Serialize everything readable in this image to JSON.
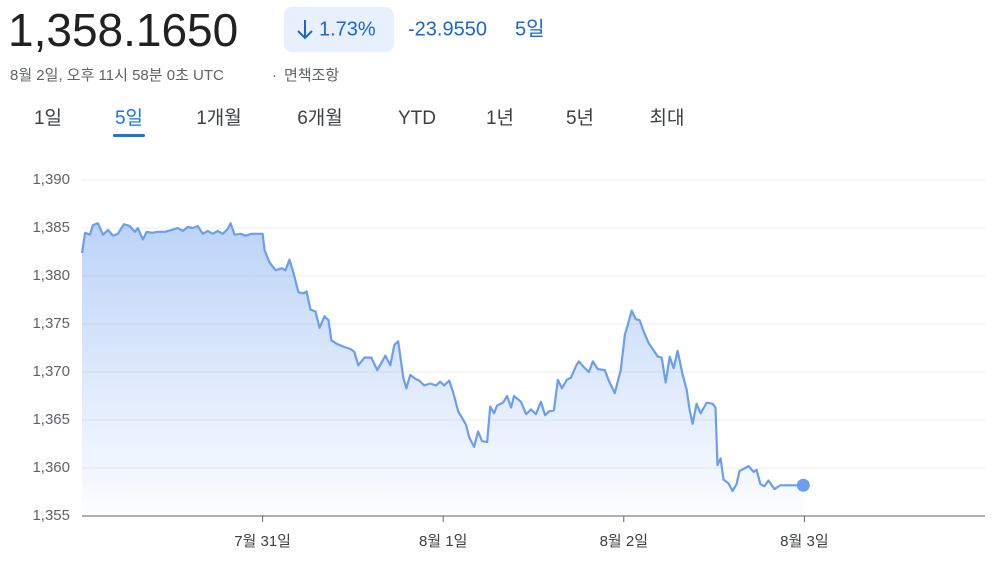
{
  "header": {
    "price": "1,358.1650",
    "change_percent": "1.73%",
    "change_value": "-23.9550",
    "change_period": "5일",
    "timestamp": "8월 2일, 오후 11시 58분 0초 UTC",
    "disclaimer": "면책조항"
  },
  "tabs": [
    "1일",
    "5일",
    "1개월",
    "6개월",
    "YTD",
    "1년",
    "5년",
    "최대"
  ],
  "selected_tab_index": 1,
  "chart_data": {
    "type": "line",
    "color": "#6b9ef0",
    "grid": true,
    "xlim": [
      0,
      5
    ],
    "xticks": [
      {
        "value": 1,
        "label": "7월 31일"
      },
      {
        "value": 2,
        "label": "8월 1일"
      },
      {
        "value": 3,
        "label": "8월 2일"
      },
      {
        "value": 4,
        "label": "8월 3일"
      }
    ],
    "ylim": [
      1355,
      1390
    ],
    "yticks": [
      {
        "value": 1355,
        "label": "1,355"
      },
      {
        "value": 1360,
        "label": "1,360"
      },
      {
        "value": 1365,
        "label": "1,365"
      },
      {
        "value": 1370,
        "label": "1,370"
      },
      {
        "value": 1375,
        "label": "1,375"
      },
      {
        "value": 1380,
        "label": "1,380"
      },
      {
        "value": 1385,
        "label": "1,385"
      },
      {
        "value": 1390,
        "label": "1,390"
      }
    ],
    "series": [
      {
        "name": "price",
        "color": "#6b9ef0",
        "x": [
          0,
          0.017,
          0.044,
          0.061,
          0.088,
          0.116,
          0.144,
          0.171,
          0.199,
          0.232,
          0.265,
          0.293,
          0.309,
          0.337,
          0.359,
          0.387,
          0.42,
          0.459,
          0.497,
          0.53,
          0.558,
          0.586,
          0.613,
          0.641,
          0.669,
          0.696,
          0.724,
          0.751,
          0.779,
          0.807,
          0.823,
          0.845,
          0.878,
          0.906,
          0.939,
          0.972,
          1.0,
          1.011,
          1.039,
          1.072,
          1.105,
          1.127,
          1.149,
          1.171,
          1.199,
          1.227,
          1.243,
          1.265,
          1.293,
          1.315,
          1.343,
          1.365,
          1.381,
          1.414,
          1.453,
          1.486,
          1.508,
          1.53,
          1.564,
          1.602,
          1.635,
          1.68,
          1.707,
          1.729,
          1.751,
          1.779,
          1.796,
          1.818,
          1.845,
          1.867,
          1.895,
          1.928,
          1.961,
          1.983,
          2.006,
          2.033,
          2.055,
          2.083,
          2.105,
          2.127,
          2.144,
          2.171,
          2.193,
          2.215,
          2.243,
          2.26,
          2.282,
          2.298,
          2.331,
          2.354,
          2.376,
          2.392,
          2.431,
          2.459,
          2.486,
          2.514,
          2.541,
          2.564,
          2.586,
          2.613,
          2.635,
          2.657,
          2.685,
          2.707,
          2.735,
          2.751,
          2.779,
          2.807,
          2.829,
          2.856,
          2.895,
          2.917,
          2.95,
          2.983,
          3.006,
          3.022,
          3.044,
          3.066,
          3.088,
          3.11,
          3.138,
          3.16,
          3.188,
          3.21,
          3.232,
          3.254,
          3.276,
          3.298,
          3.326,
          3.348,
          3.365,
          3.381,
          3.403,
          3.425,
          3.459,
          3.492,
          3.508,
          3.519,
          3.536,
          3.552,
          3.58,
          3.602,
          3.624,
          3.641,
          3.663,
          3.691,
          3.718,
          3.735,
          3.757,
          3.779,
          3.801,
          3.834,
          3.867,
          3.901,
          3.939,
          3.994
        ],
        "values": [
          1382.4,
          1384.5,
          1384.3,
          1385.3,
          1385.5,
          1384.3,
          1384.8,
          1384.2,
          1384.4,
          1385.4,
          1385.2,
          1384.6,
          1385.0,
          1383.8,
          1384.6,
          1384.5,
          1384.6,
          1384.6,
          1384.8,
          1385.0,
          1384.7,
          1385.1,
          1385.0,
          1385.2,
          1384.4,
          1384.7,
          1384.4,
          1384.7,
          1384.4,
          1384.9,
          1385.5,
          1384.3,
          1384.4,
          1384.2,
          1384.4,
          1384.4,
          1384.4,
          1382.7,
          1381.4,
          1380.6,
          1380.8,
          1380.6,
          1381.7,
          1380.3,
          1378.3,
          1378.2,
          1378.4,
          1376.5,
          1376.3,
          1374.6,
          1375.8,
          1375.4,
          1373.3,
          1372.9,
          1372.6,
          1372.4,
          1372.1,
          1370.7,
          1371.5,
          1371.5,
          1370.2,
          1371.7,
          1370.7,
          1372.8,
          1373.2,
          1369.4,
          1368.3,
          1369.7,
          1369.3,
          1369.1,
          1368.6,
          1368.8,
          1368.6,
          1369.0,
          1368.6,
          1369.1,
          1367.9,
          1365.9,
          1365.2,
          1364.5,
          1363.2,
          1362.2,
          1363.8,
          1362.8,
          1362.7,
          1366.4,
          1365.7,
          1366.5,
          1366.8,
          1367.5,
          1366.3,
          1367.5,
          1366.9,
          1365.6,
          1366.1,
          1365.6,
          1366.9,
          1365.5,
          1365.9,
          1366.0,
          1369.2,
          1368.3,
          1369.2,
          1369.4,
          1370.6,
          1371.1,
          1370.5,
          1370.0,
          1371.1,
          1370.3,
          1370.2,
          1369.1,
          1367.8,
          1370.2,
          1373.9,
          1374.9,
          1376.4,
          1375.5,
          1375.4,
          1374.2,
          1373.0,
          1372.4,
          1371.6,
          1371.5,
          1368.9,
          1371.6,
          1370.4,
          1372.2,
          1369.7,
          1368.2,
          1366.0,
          1364.6,
          1366.7,
          1365.7,
          1366.8,
          1366.7,
          1366.3,
          1360.3,
          1361.0,
          1358.8,
          1358.4,
          1357.6,
          1358.3,
          1359.7,
          1359.9,
          1360.2,
          1359.6,
          1359.8,
          1358.3,
          1358.1,
          1358.7,
          1357.8,
          1358.2,
          1358.2,
          1358.2,
          1358.2
        ]
      }
    ]
  }
}
